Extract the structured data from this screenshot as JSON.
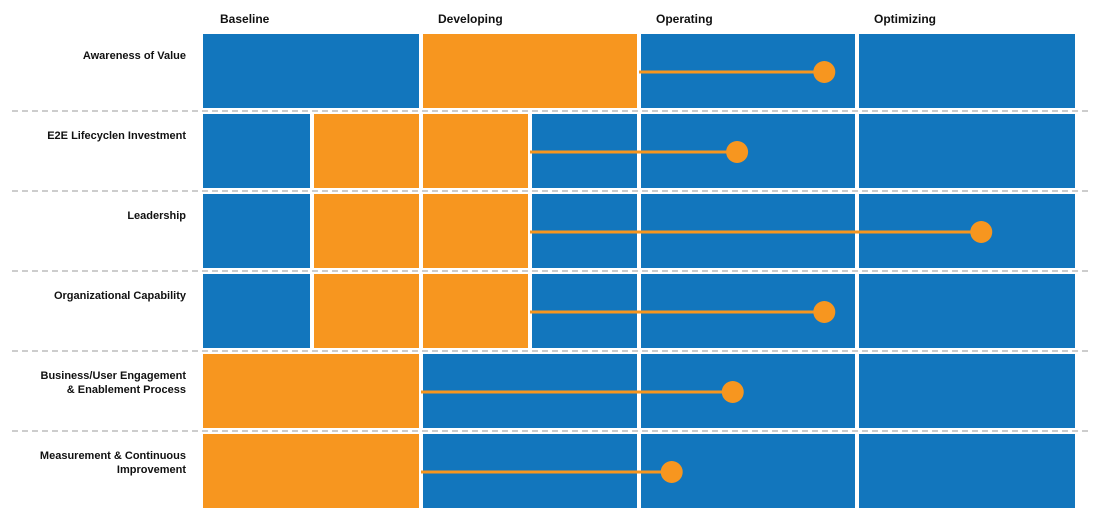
{
  "chart_data": {
    "type": "bar",
    "stages": [
      "Baseline",
      "Developing",
      "Operating",
      "Optimizing"
    ],
    "rows": [
      {
        "label_lines": [
          "Awareness of Value"
        ],
        "current": [
          1,
          2
        ],
        "target": 2.85
      },
      {
        "label_lines": [
          "E2E Lifecyclen Investment"
        ],
        "current": [
          0.5,
          1.5
        ],
        "target": 2.45
      },
      {
        "label_lines": [
          "Leadership"
        ],
        "current": [
          0.5,
          1.5
        ],
        "target": 3.57
      },
      {
        "label_lines": [
          "Organizational Capability"
        ],
        "current": [
          0.5,
          1.5
        ],
        "target": 2.85
      },
      {
        "label_lines": [
          "Business/User Engagement",
          "& Enablement Process"
        ],
        "current": [
          0,
          1
        ],
        "target": 2.43
      },
      {
        "label_lines": [
          "Measurement & Continuous",
          "Improvement"
        ],
        "current": [
          0,
          1
        ],
        "target": 2.15
      }
    ],
    "xlim": [
      0,
      4
    ],
    "colors": {
      "background_cell": "#1276BD",
      "current_range": "#F7961F",
      "target_marker": "#F7961F",
      "divider": "#9B9B9B"
    }
  }
}
